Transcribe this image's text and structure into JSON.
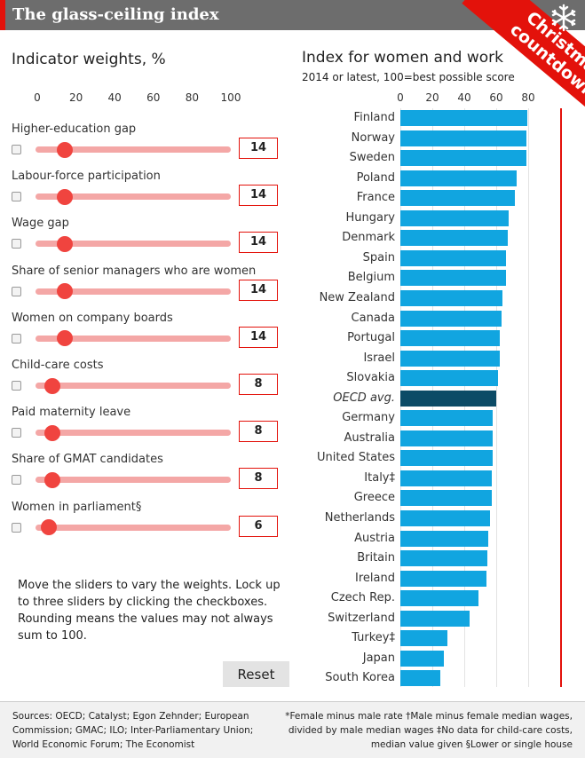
{
  "header": {
    "title": "The glass-ceiling index",
    "ribbon": [
      "Christmas",
      "countdown"
    ]
  },
  "left": {
    "title": "Indicator weights, %",
    "axis_ticks": [
      "0",
      "20",
      "40",
      "60",
      "80",
      "100"
    ],
    "sliders": [
      {
        "label": "Higher-education gap",
        "value": 14
      },
      {
        "label": "Labour-force participation",
        "value": 14
      },
      {
        "label": "Wage gap",
        "value": 14
      },
      {
        "label": "Share of senior managers who are women",
        "value": 14
      },
      {
        "label": "Women on company boards",
        "value": 14
      },
      {
        "label": "Child-care costs",
        "value": 8
      },
      {
        "label": "Paid maternity leave",
        "value": 8
      },
      {
        "label": "Share of GMAT candidates",
        "value": 8
      },
      {
        "label": "Women in parliament§",
        "value": 6
      }
    ],
    "note": "Move the sliders to vary the weights. Lock up to three sliders by clicking the checkboxes. Rounding means the values may not always sum to 100.",
    "reset_label": "Reset"
  },
  "chart_data": {
    "type": "bar",
    "title": "Index for women and work",
    "subtitle": "2014 or latest, 100=best possible score",
    "xlim": [
      0,
      100
    ],
    "x_ticks": [
      0,
      20,
      40,
      60,
      80
    ],
    "categories": [
      "Finland",
      "Norway",
      "Sweden",
      "Poland",
      "France",
      "Hungary",
      "Denmark",
      "Spain",
      "Belgium",
      "New Zealand",
      "Canada",
      "Portugal",
      "Israel",
      "Slovakia",
      "OECD avg.",
      "Germany",
      "Australia",
      "United States",
      "Italy‡",
      "Greece",
      "Netherlands",
      "Austria",
      "Britain",
      "Ireland",
      "Czech Rep.",
      "Switzerland",
      "Turkey‡",
      "Japan",
      "South Korea"
    ],
    "values": [
      79.5,
      79,
      79,
      73,
      71.5,
      67.5,
      67,
      66,
      66,
      64,
      63.5,
      62,
      62,
      61,
      60,
      58,
      58,
      57.5,
      57,
      57,
      56,
      55,
      54.5,
      54,
      49,
      43.5,
      29.5,
      27,
      25
    ],
    "highlight": "OECD avg.",
    "colors": {
      "bar": "#11a5e0",
      "highlight": "#0c4b66",
      "max_line": "#e3120b"
    }
  },
  "footer": {
    "sources": "Sources: OECD; Catalyst; Egon Zehnder; European Commission; GMAC; ILO; Inter-Parliamentary Union; World Economic Forum; The Economist",
    "notes": "*Female minus male rate †Male minus female median wages, divided by male median wages ‡No data for child-care costs, median value given §Lower or single house"
  }
}
